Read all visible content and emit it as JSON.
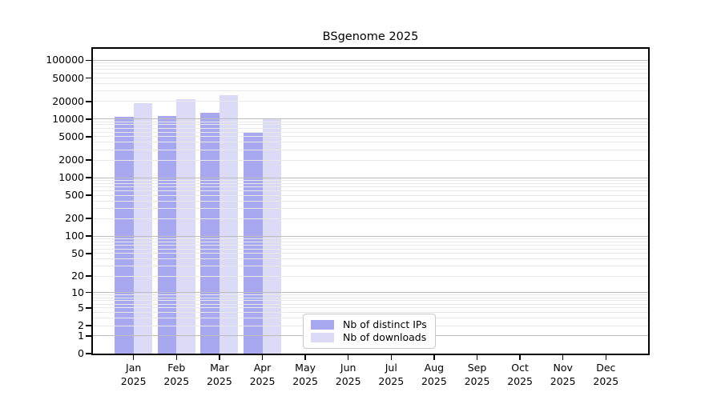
{
  "chart_data": {
    "type": "bar",
    "title": "BSgenome 2025",
    "xlabel": "",
    "ylabel": "",
    "categories": [
      "Jan",
      "Feb",
      "Mar",
      "Apr",
      "May",
      "Jun",
      "Jul",
      "Aug",
      "Sep",
      "Oct",
      "Nov",
      "Dec"
    ],
    "x_tick_year": "2025",
    "series": [
      {
        "name": "Nb of distinct IPs",
        "color": "#a8a8f0",
        "values": [
          10800,
          11400,
          12900,
          5800,
          0,
          0,
          0,
          0,
          0,
          0,
          0,
          0
        ]
      },
      {
        "name": "Nb of downloads",
        "color": "#dbdbf8",
        "values": [
          18900,
          21900,
          25200,
          9900,
          0,
          0,
          0,
          0,
          0,
          0,
          0,
          0
        ]
      }
    ],
    "yscale": "log10(1+x)",
    "yticks": [
      100000,
      50000,
      20000,
      10000,
      5000,
      2000,
      1000,
      500,
      200,
      100,
      50,
      20,
      10,
      5,
      2,
      1,
      0
    ],
    "ylim": [
      0,
      170000
    ],
    "grid": {
      "orientation": "horizontal",
      "minor_color": "#e9e9e9",
      "major_color": "#bdbdbd",
      "minor_steps": [
        2,
        3,
        4,
        5,
        6,
        7,
        8,
        9
      ]
    },
    "legend_position": "inside-bottom-center",
    "background": "#ffffff",
    "spine_color": "#000000"
  },
  "legend": {
    "items": [
      {
        "label": "Nb of distinct IPs"
      },
      {
        "label": "Nb of downloads"
      }
    ]
  }
}
